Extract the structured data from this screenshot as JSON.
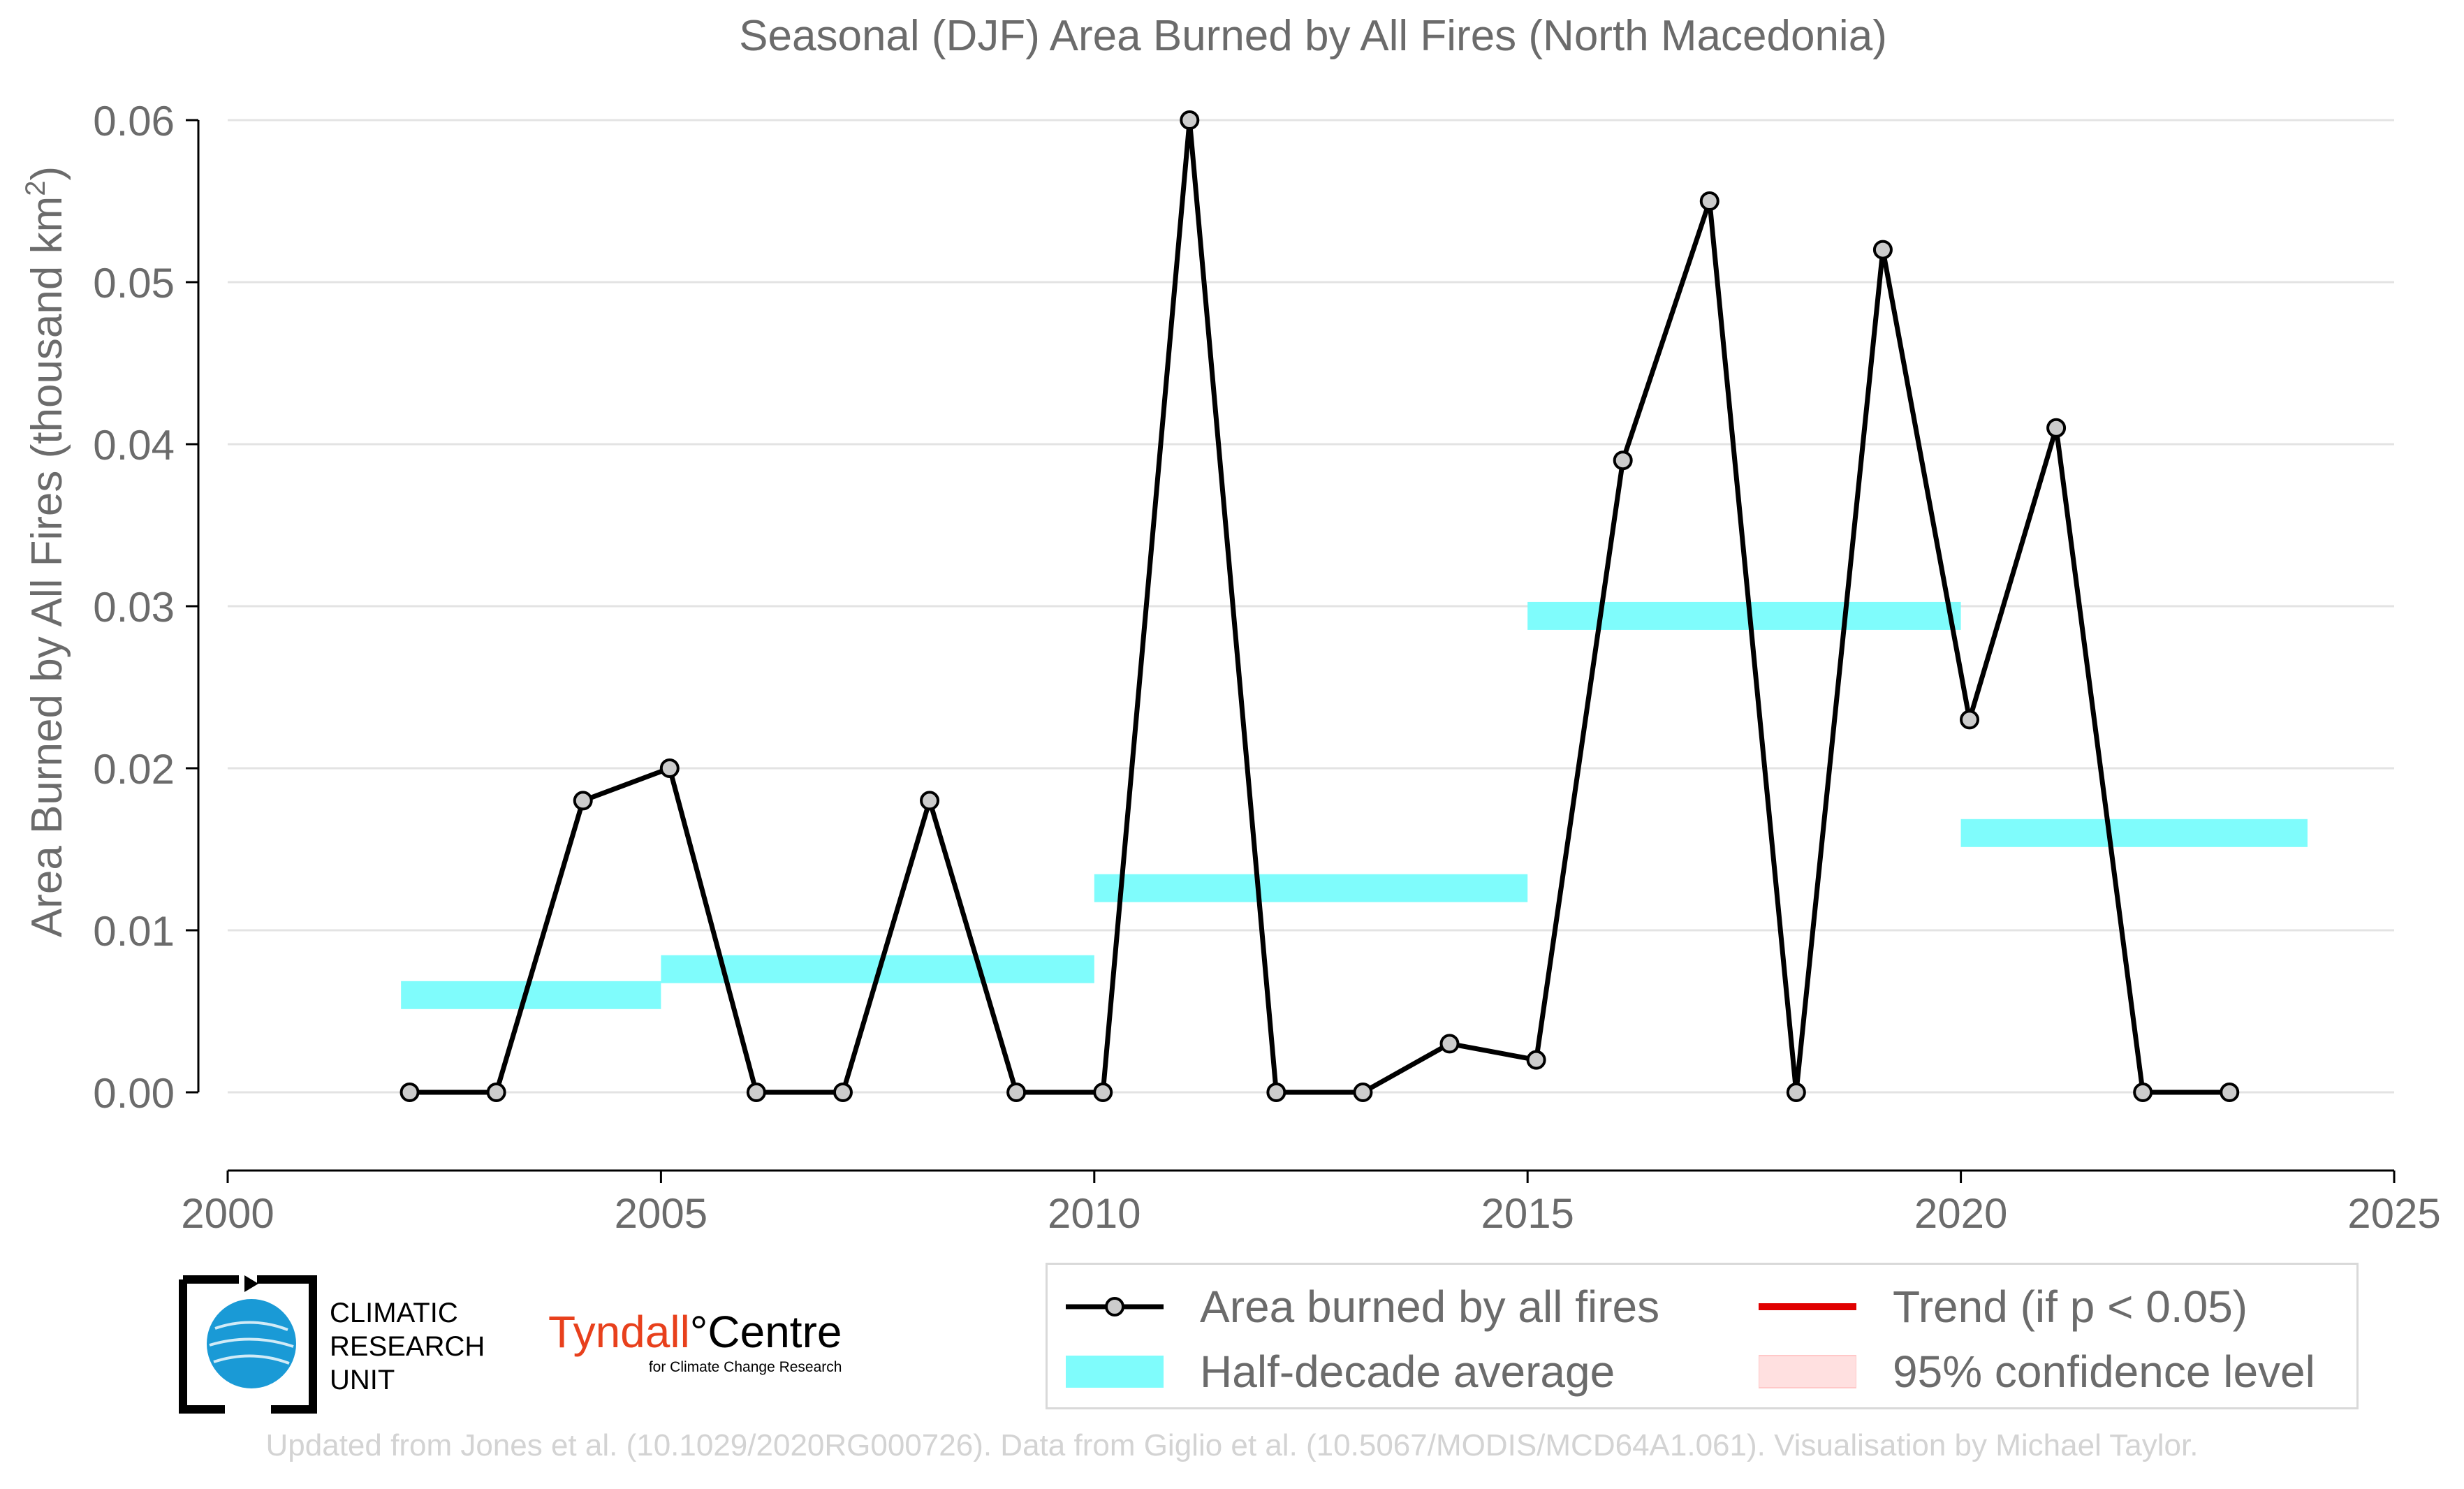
{
  "chart_data": {
    "type": "line",
    "title": "Seasonal (DJF) Area Burned by All Fires (North Macedonia)",
    "ylabel": "Area Burned by All Fires (thousand km",
    "ylabel_sup": "2",
    "ylabel_end": ")",
    "xlabel": "",
    "xlim": [
      2000,
      2025
    ],
    "ylim": [
      -0.005,
      0.062
    ],
    "x_ticks": [
      2000,
      2005,
      2010,
      2015,
      2020,
      2025
    ],
    "y_ticks": [
      0.0,
      0.01,
      0.02,
      0.03,
      0.04,
      0.05,
      0.06
    ],
    "y_tick_labels": [
      "0.00",
      "0.01",
      "0.02",
      "0.03",
      "0.04",
      "0.05",
      "0.06"
    ],
    "grid": "horizontal",
    "series": [
      {
        "name": "Area burned by all fires",
        "color": "#000000",
        "marker_fill": "#cccccc",
        "x": [
          2002,
          2003,
          2004,
          2005,
          2006,
          2007,
          2008,
          2009,
          2010,
          2011,
          2012,
          2013,
          2014,
          2015,
          2016,
          2017,
          2018,
          2019,
          2020,
          2021,
          2022,
          2023
        ],
        "y": [
          0.0,
          0.0,
          0.018,
          0.02,
          0.0,
          0.0,
          0.018,
          0.0,
          0.0,
          0.06,
          0.0,
          0.0,
          0.003,
          0.002,
          0.039,
          0.055,
          0.0,
          0.052,
          0.023,
          0.041,
          0.0,
          0.0
        ]
      }
    ],
    "half_decade_average": {
      "name": "Half-decade average",
      "color": "#7ffcfc",
      "segments": [
        {
          "x0": 2002,
          "x1": 2005,
          "y": 0.006
        },
        {
          "x0": 2005,
          "x1": 2010,
          "y": 0.0076
        },
        {
          "x0": 2010,
          "x1": 2015,
          "y": 0.0126
        },
        {
          "x0": 2015,
          "x1": 2020,
          "y": 0.0294
        },
        {
          "x0": 2020,
          "x1": 2024,
          "y": 0.016
        }
      ]
    },
    "legend": {
      "placement": "bottom-right",
      "items": [
        {
          "label": "Area burned by all fires",
          "symbol": "line-marker",
          "color": "#000000"
        },
        {
          "label": "Trend (if p < 0.05)",
          "symbol": "line",
          "color": "#e00000"
        },
        {
          "label": "Half-decade average",
          "symbol": "band",
          "color": "#7ffcfc"
        },
        {
          "label": "95% confidence level",
          "symbol": "band",
          "color": "#ffe0e0"
        }
      ]
    }
  },
  "logos": {
    "cru_lines": [
      "CLIMATIC",
      "RESEARCH",
      "UNIT"
    ],
    "tyndall_name": "Tyndall",
    "tyndall_degree": "°",
    "tyndall_centre": "Centre",
    "tyndall_sub": "for Climate Change Research"
  },
  "footer": "Updated from Jones et al. (10.1029/2020RG000726). Data from Giglio et al. (10.5067/MODIS/MCD64A1.061). Visualisation by Michael Taylor."
}
